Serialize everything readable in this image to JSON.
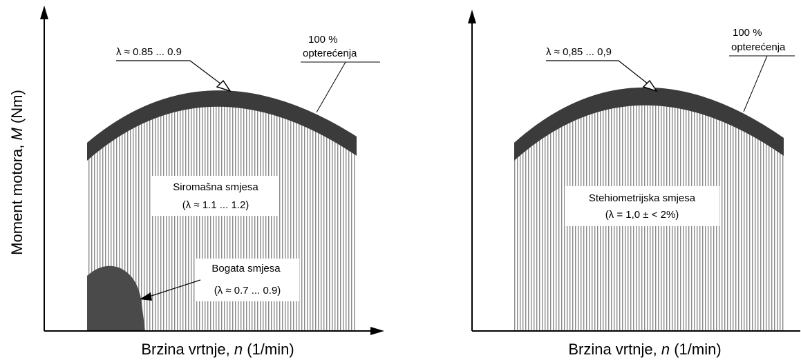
{
  "colors": {
    "hatch": "#8a8a8a",
    "band": "#3b3b3b",
    "rich_zone": "#4a4a4a",
    "axis": "#000000",
    "box_fill": "#ffffff"
  },
  "left_diagram": {
    "y_axis_label_text": "Moment motora,",
    "y_axis_label_var": "M",
    "y_axis_label_unit": "(Nm)",
    "x_axis_label_text": "Brzina vrtnje,",
    "x_axis_label_var": "n",
    "x_axis_label_unit": "(1/min)",
    "lambda_band_label": "λ ≈ 0.85 ... 0.9",
    "full_load_label_line1": "100 %",
    "full_load_label_line2": "opterećenja",
    "lean_label_line1": "Siromašna smjesa",
    "lean_label_line2": "(λ ≈ 1.1 ... 1.2)",
    "rich_label_line1": "Bogata smjesa",
    "rich_label_line2": "(λ ≈ 0.7 ... 0.9)"
  },
  "right_diagram": {
    "x_axis_label_text": "Brzina vrtnje,",
    "x_axis_label_var": "n",
    "x_axis_label_unit": "(1/min)",
    "lambda_band_label": "λ ≈ 0,85 ... 0,9",
    "full_load_label_line1": "100 %",
    "full_load_label_line2": "opterećenja",
    "stoich_label_line1": "Stehiometrijska smjesa",
    "stoich_label_line2": "(λ = 1,0 ± < 2%)"
  }
}
